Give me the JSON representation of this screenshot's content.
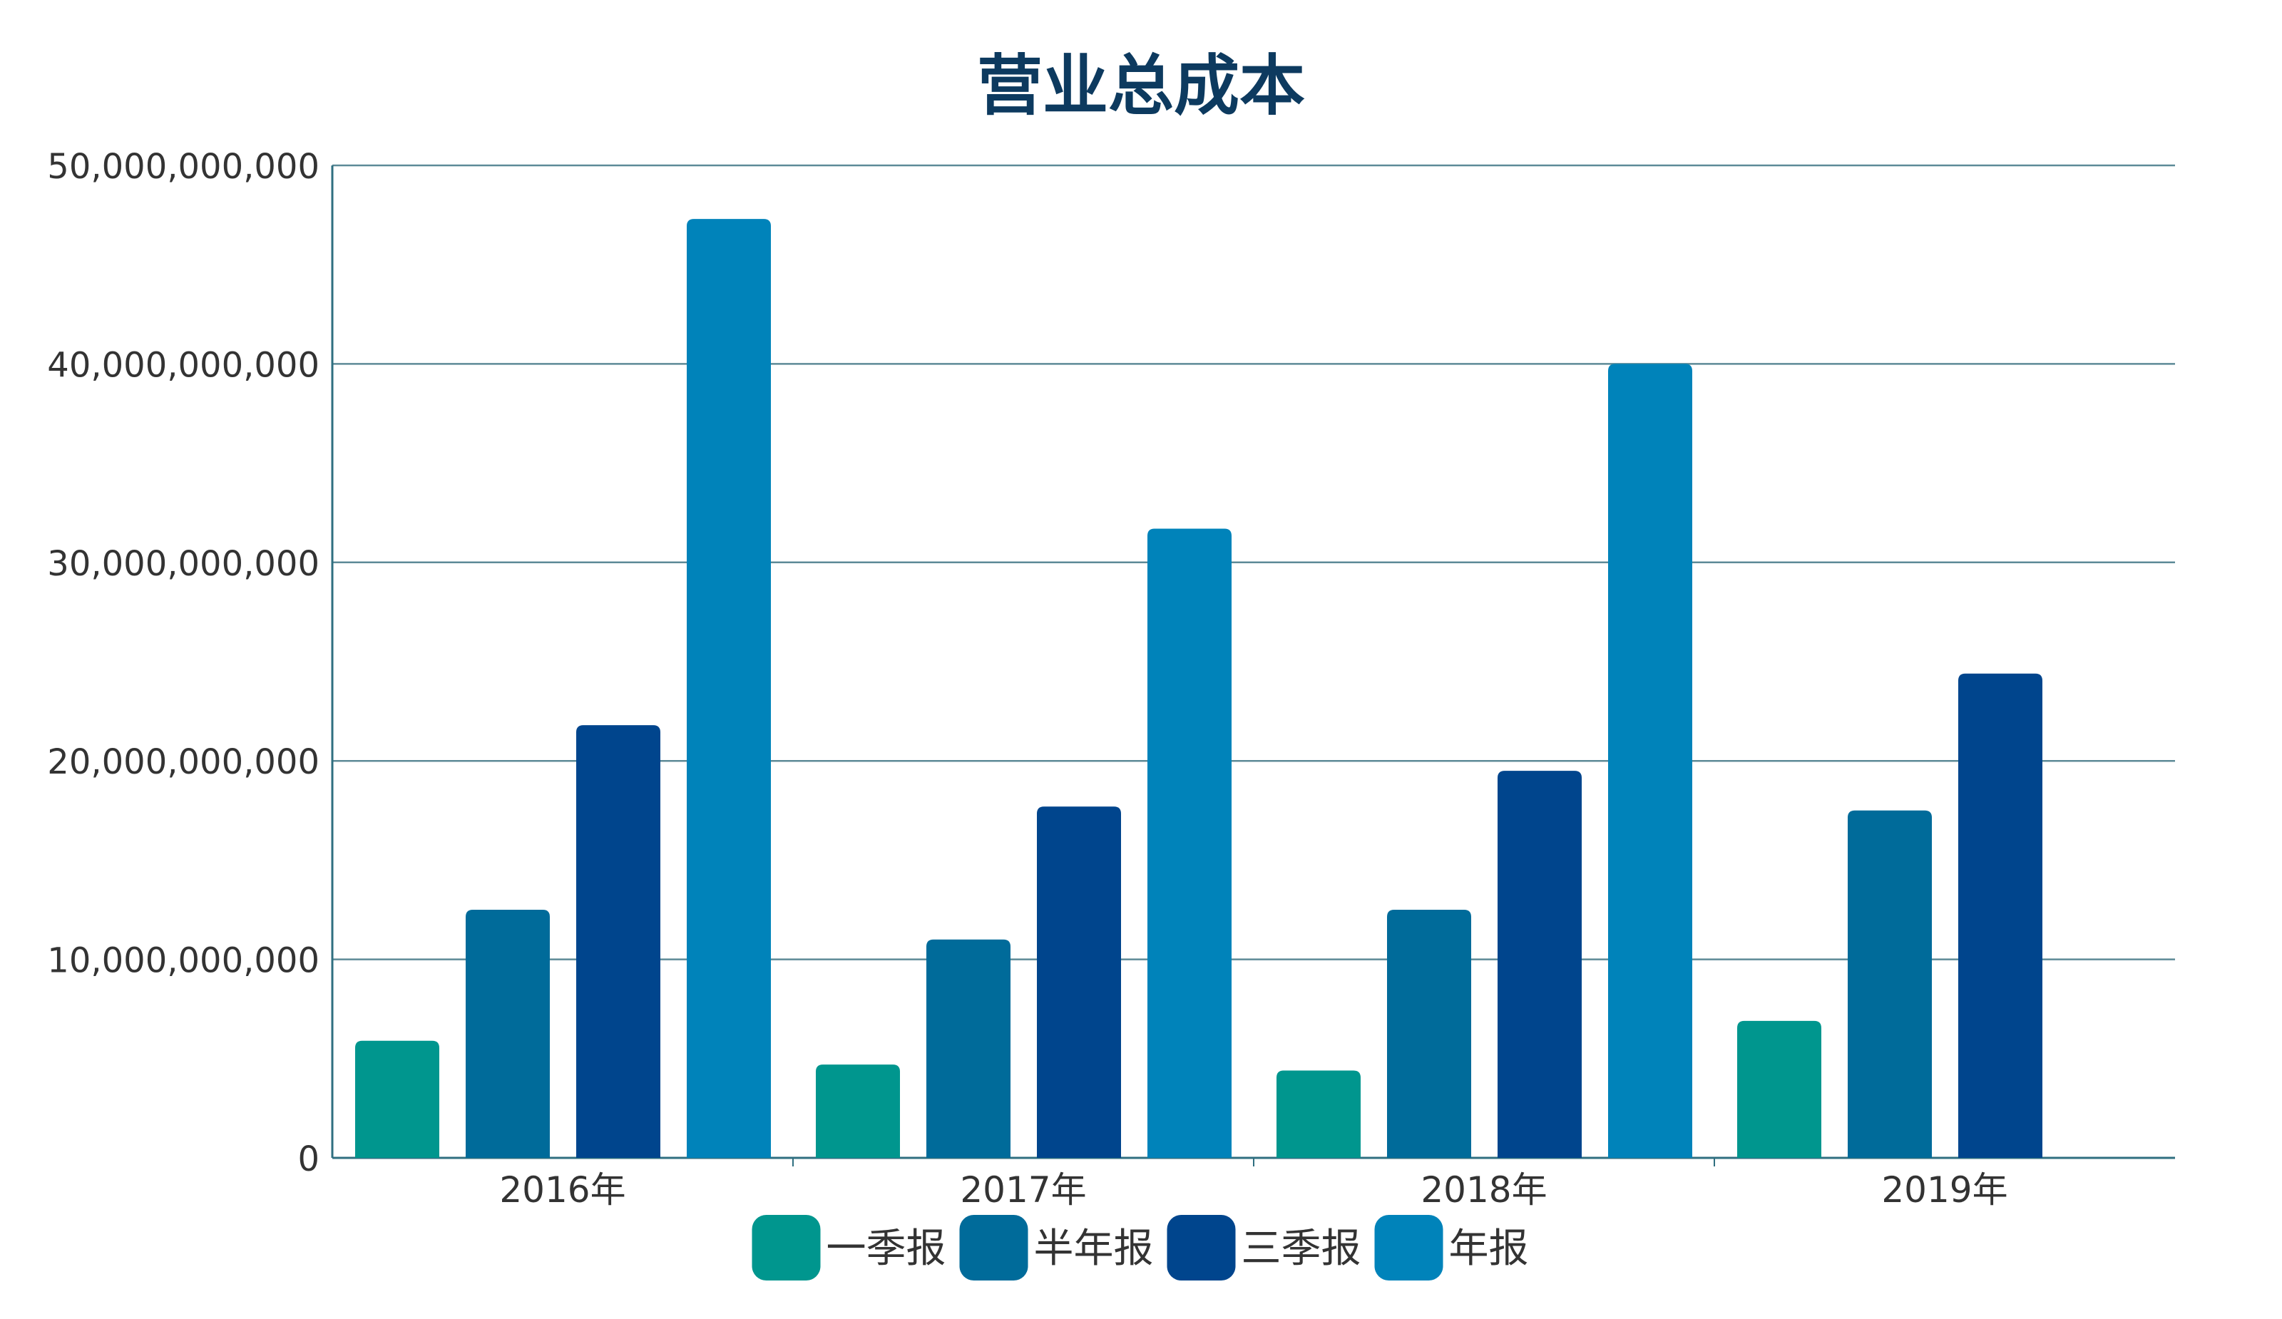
{
  "chart_data": {
    "type": "bar",
    "title": "营业总成本",
    "xlabel": "",
    "ylabel": "",
    "categories": [
      "2016年",
      "2017年",
      "2018年",
      "2019年"
    ],
    "series": [
      {
        "name": "一季报",
        "color": "#00968e",
        "values": [
          5900000000,
          4700000000,
          4400000000,
          6900000000
        ]
      },
      {
        "name": "半年报",
        "color": "#006b9a",
        "values": [
          12500000000,
          11000000000,
          12500000000,
          17500000000
        ]
      },
      {
        "name": "三季报",
        "color": "#00458d",
        "values": [
          21800000000,
          17700000000,
          19500000000,
          24400000000
        ]
      },
      {
        "name": "年报",
        "color": "#0083ba",
        "values": [
          47300000000,
          31700000000,
          40000000000,
          null
        ]
      }
    ],
    "ylim": [
      0,
      50000000000
    ],
    "yticks": [
      0,
      10000000000,
      20000000000,
      30000000000,
      40000000000,
      50000000000
    ],
    "ytick_labels": [
      "0",
      "10,000,000,000",
      "20,000,000,000",
      "30,000,000,000",
      "40,000,000,000",
      "50,000,000,000"
    ],
    "grid": true,
    "legend_position": "bottom-center",
    "colors": {
      "grid": "#5d8a97",
      "axis": "#2f6f80",
      "title": "#0d3a5f",
      "text": "#333333"
    }
  }
}
